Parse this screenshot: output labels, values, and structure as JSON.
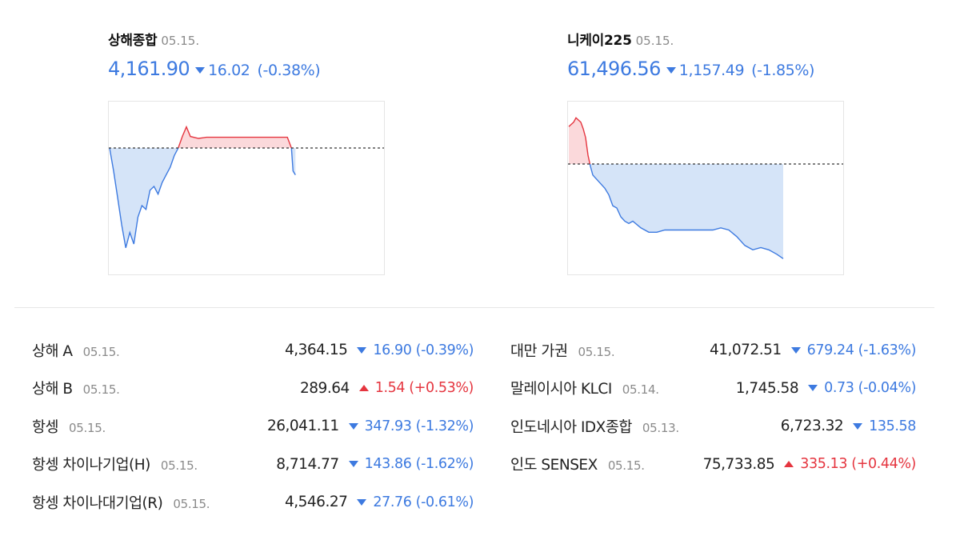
{
  "cards": [
    {
      "name": "상해종합",
      "date": "05.15.",
      "price": "4,161.90",
      "change": "16.02",
      "percent": "(-0.38%)",
      "direction": "down"
    },
    {
      "name": "니케이225",
      "date": "05.15.",
      "price": "61,496.56",
      "change": "1,157.49",
      "percent": "(-1.85%)",
      "direction": "down"
    }
  ],
  "colors": {
    "down": "#3d7ae0",
    "up": "#e5353f",
    "down_fill": "#d5e4f8",
    "up_fill": "#fbd9db",
    "muted": "#8a8a8a"
  },
  "chart_data": [
    {
      "type": "area",
      "baseline": "previous close",
      "x": [
        0,
        5,
        10,
        15,
        20,
        25,
        30,
        35,
        40,
        45,
        50,
        55,
        60,
        65,
        70,
        75,
        80,
        85,
        90,
        95,
        100,
        110,
        120,
        130,
        140,
        150,
        160,
        170,
        180,
        190,
        200,
        210,
        220,
        225,
        227,
        230
      ],
      "y": [
        0,
        -0.6,
        -1.3,
        -2.0,
        -2.6,
        -2.2,
        -2.5,
        -1.8,
        -1.5,
        -1.6,
        -1.1,
        -1.0,
        -1.2,
        -0.9,
        -0.7,
        -0.5,
        -0.2,
        0,
        0.3,
        0.55,
        0.3,
        0.25,
        0.28,
        0.28,
        0.28,
        0.28,
        0.28,
        0.28,
        0.28,
        0.28,
        0.28,
        0.28,
        0.28,
        0,
        -0.6,
        -0.7
      ]
    },
    {
      "type": "area",
      "baseline": "previous close",
      "x": [
        0,
        3,
        6,
        9,
        12,
        15,
        18,
        21,
        24,
        27,
        30,
        35,
        40,
        45,
        50,
        55,
        60,
        65,
        70,
        75,
        80,
        90,
        100,
        110,
        120,
        130,
        140,
        150,
        160,
        170,
        180,
        190,
        200,
        210,
        220,
        230,
        240,
        250,
        260,
        268
      ],
      "y": [
        0.85,
        0.9,
        0.95,
        1.05,
        1.0,
        0.95,
        0.8,
        0.6,
        0.2,
        -0.05,
        -0.25,
        -0.35,
        -0.45,
        -0.55,
        -0.7,
        -0.95,
        -1.0,
        -1.2,
        -1.3,
        -1.35,
        -1.3,
        -1.45,
        -1.55,
        -1.55,
        -1.5,
        -1.5,
        -1.5,
        -1.5,
        -1.5,
        -1.5,
        -1.5,
        -1.45,
        -1.5,
        -1.65,
        -1.85,
        -1.95,
        -1.9,
        -1.95,
        -2.05,
        -2.15
      ]
    }
  ],
  "rows_left": [
    {
      "name": "상해 A",
      "date": "05.15.",
      "value": "4,364.15",
      "change": "16.90 (-0.39%)",
      "direction": "down"
    },
    {
      "name": "상해 B",
      "date": "05.15.",
      "value": "289.64",
      "change": "1.54 (+0.53%)",
      "direction": "up"
    },
    {
      "name": "항셍",
      "date": "05.15.",
      "value": "26,041.11",
      "change": "347.93 (-1.32%)",
      "direction": "down"
    },
    {
      "name": "항셍 차이나기업(H)",
      "date": "05.15.",
      "value": "8,714.77",
      "change": "143.86 (-1.62%)",
      "direction": "down"
    },
    {
      "name": "항셍 차이나대기업(R)",
      "date": "05.15.",
      "value": "4,546.27",
      "change": "27.76 (-0.61%)",
      "direction": "down"
    }
  ],
  "rows_right": [
    {
      "name": "대만 가권",
      "date": "05.15.",
      "value": "41,072.51",
      "change": "679.24 (-1.63%)",
      "direction": "down"
    },
    {
      "name": "말레이시아 KLCI",
      "date": "05.14.",
      "value": "1,745.58",
      "change": "0.73 (-0.04%)",
      "direction": "down"
    },
    {
      "name": "인도네시아 IDX종합",
      "date": "05.13.",
      "value": "6,723.32",
      "change": "135.58",
      "direction": "down"
    },
    {
      "name": "인도 SENSEX",
      "date": "05.15.",
      "value": "75,733.85",
      "change": "335.13 (+0.44%)",
      "direction": "up"
    }
  ]
}
